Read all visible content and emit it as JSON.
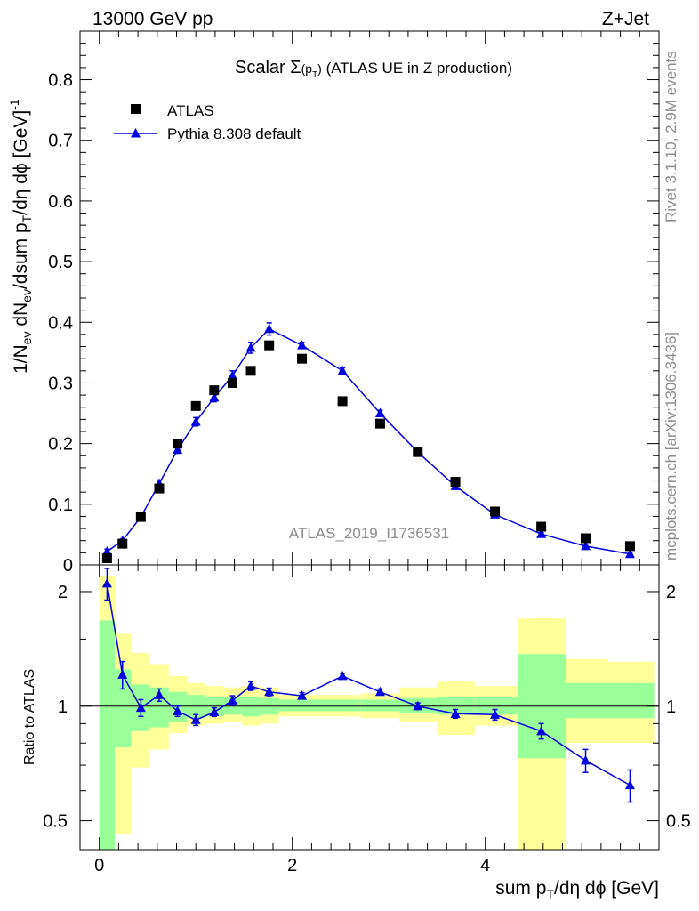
{
  "header": {
    "left": "13000 GeV pp",
    "right": "Z+Jet"
  },
  "side_labels": {
    "top": "Rivet 3.1.10,  2.9M events",
    "bottom": "mcplots.cern.ch [arXiv:1306.3436]"
  },
  "watermark": "ATLAS_2019_I1736531",
  "colors": {
    "data": "#000000",
    "mc": "#0000e0",
    "band_inner": "#99ff99",
    "band_outer": "#ffff99"
  },
  "chart_data": [
    {
      "type": "scatter",
      "title": "Scalar Σ(p_T) (ATLAS UE in Z production)",
      "xlabel": "sum p_T/dη dϕ [GeV]",
      "ylabel": "1/N_ev dN_ev/dsum p_T/dη dϕ [GeV]^-1",
      "xlim": [
        -0.2,
        5.8
      ],
      "ylim": [
        0,
        0.88
      ],
      "yticks": [
        0,
        0.1,
        0.2,
        0.3,
        0.4,
        0.5,
        0.6,
        0.7,
        0.8
      ],
      "ytick_labels": [
        "0",
        "0.1",
        "0.2",
        "0.3",
        "0.4",
        "0.5",
        "0.6",
        "0.7",
        "0.8"
      ],
      "legend": "top-left",
      "x": [
        0.08,
        0.24,
        0.43,
        0.62,
        0.81,
        1.0,
        1.19,
        1.38,
        1.57,
        1.76,
        2.1,
        2.52,
        2.91,
        3.3,
        3.69,
        4.1,
        4.58,
        5.04,
        5.5
      ],
      "series": [
        {
          "name": "ATLAS",
          "marker": "square",
          "values": [
            0.011,
            0.035,
            0.079,
            0.126,
            0.2,
            0.262,
            0.288,
            0.3,
            0.32,
            0.362,
            0.34,
            0.27,
            0.233,
            0.186,
            0.137,
            0.088,
            0.063,
            0.044,
            0.031
          ]
        },
        {
          "name": "Pythia 8.308 default",
          "marker": "triangle",
          "values": [
            0.022,
            0.04,
            0.079,
            0.134,
            0.19,
            0.236,
            0.276,
            0.312,
            0.358,
            0.389,
            0.362,
            0.32,
            0.25,
            0.186,
            0.13,
            0.083,
            0.051,
            0.031,
            0.018
          ],
          "errors": [
            0.004,
            0.003,
            0.004,
            0.006,
            0.006,
            0.007,
            0.007,
            0.008,
            0.009,
            0.01,
            0.005,
            0.005,
            0.005,
            0.003,
            0.003,
            0.002,
            0.002,
            0.001,
            0.001
          ]
        }
      ]
    },
    {
      "type": "line",
      "ylabel": "Ratio to ATLAS",
      "xlim": [
        -0.2,
        5.8
      ],
      "ylim": [
        0.42,
        2.35
      ],
      "log_y": true,
      "xticks": [
        0,
        2,
        4
      ],
      "xtick_labels": [
        "0",
        "2",
        "4"
      ],
      "yticks": [
        0.5,
        1,
        2
      ],
      "ytick_labels": [
        "0.5",
        "1",
        "2"
      ],
      "reference_line": 1,
      "x": [
        0.08,
        0.24,
        0.43,
        0.62,
        0.81,
        1.0,
        1.19,
        1.38,
        1.57,
        1.76,
        2.1,
        2.52,
        2.91,
        3.3,
        3.69,
        4.1,
        4.58,
        5.04,
        5.5
      ],
      "series": [
        {
          "name": "Pythia 8.308 default",
          "values": [
            2.1,
            1.21,
            0.99,
            1.07,
            0.97,
            0.92,
            0.965,
            1.035,
            1.13,
            1.09,
            1.065,
            1.2,
            1.09,
            1.0,
            0.955,
            0.95,
            0.86,
            0.72,
            0.62
          ],
          "errors": [
            0.2,
            0.1,
            0.05,
            0.04,
            0.03,
            0.03,
            0.025,
            0.03,
            0.03,
            0.025,
            0.02,
            0.02,
            0.02,
            0.02,
            0.025,
            0.03,
            0.04,
            0.05,
            0.06
          ]
        }
      ],
      "bands": {
        "edges": [
          0,
          0.16,
          0.33,
          0.52,
          0.72,
          0.91,
          1.1,
          1.29,
          1.48,
          1.67,
          1.86,
          2.34,
          2.71,
          3.11,
          3.5,
          3.89,
          4.34,
          4.84,
          5.27,
          5.75
        ],
        "inner_low": [
          0.3,
          0.78,
          0.86,
          0.88,
          0.91,
          0.93,
          0.94,
          0.95,
          0.94,
          0.95,
          0.97,
          0.97,
          0.97,
          0.96,
          0.95,
          0.95,
          0.73,
          0.93,
          0.93
        ],
        "inner_high": [
          1.68,
          1.25,
          1.14,
          1.12,
          1.09,
          1.07,
          1.06,
          1.06,
          1.06,
          1.05,
          1.04,
          1.04,
          1.04,
          1.05,
          1.06,
          1.06,
          1.37,
          1.15,
          1.15
        ],
        "outer_low": [
          0.3,
          0.46,
          0.69,
          0.77,
          0.85,
          0.89,
          0.9,
          0.91,
          0.89,
          0.9,
          0.94,
          0.94,
          0.93,
          0.91,
          0.84,
          0.89,
          0.37,
          0.8,
          0.8
        ],
        "outer_high": [
          2.2,
          1.55,
          1.38,
          1.29,
          1.2,
          1.15,
          1.13,
          1.12,
          1.13,
          1.12,
          1.07,
          1.07,
          1.08,
          1.12,
          1.16,
          1.13,
          1.7,
          1.33,
          1.31
        ]
      }
    }
  ]
}
